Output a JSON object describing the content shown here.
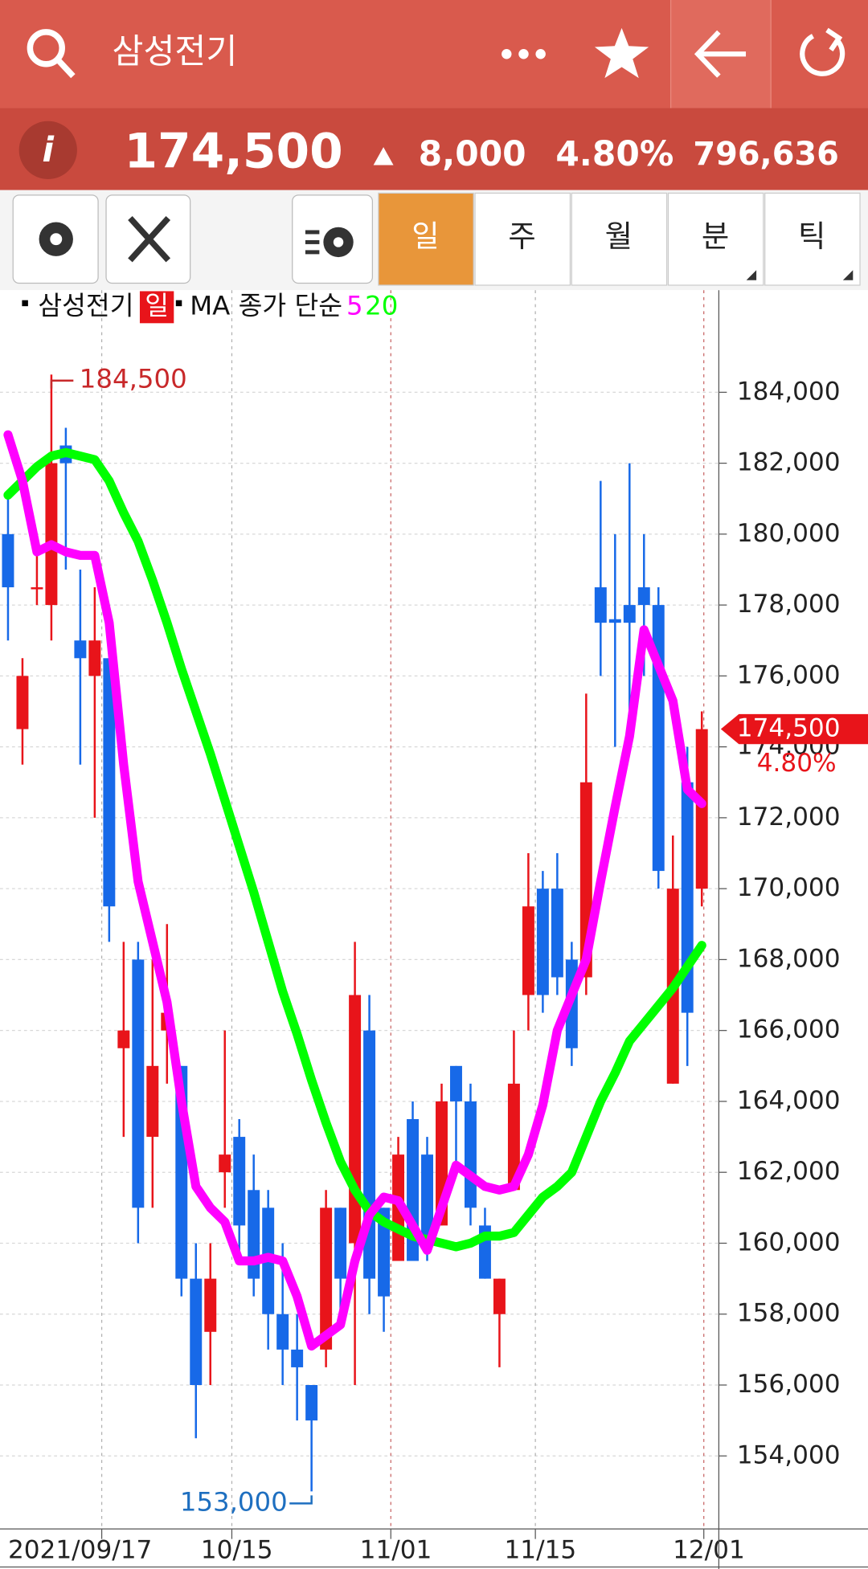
{
  "header": {
    "title": "삼성전기",
    "info_icon": "i",
    "price": "174,500",
    "change": "8,000",
    "change_pct": "4.80%",
    "volume": "796,636"
  },
  "tabs": [
    "일",
    "주",
    "월",
    "분",
    "틱"
  ],
  "legend": {
    "name": "삼성전기",
    "period": "일",
    "ma_label": "MA 종가 단순",
    "ma_short": "5",
    "ma_long": "20"
  },
  "chart_data": {
    "type": "candlestick",
    "categories": [
      null,
      null,
      null,
      null,
      null,
      null,
      "2021/09/17",
      null,
      null,
      null,
      null,
      null,
      null,
      null,
      null,
      "10/15",
      null,
      null,
      null,
      null,
      null,
      null,
      null,
      null,
      null,
      null,
      "11/01",
      null,
      null,
      null,
      null,
      null,
      null,
      null,
      null,
      null,
      "11/15",
      null,
      null,
      null,
      null,
      null,
      null,
      null,
      null,
      null,
      null,
      null,
      "12/01"
    ],
    "open": [
      180000,
      174500,
      178500,
      178000,
      182500,
      177000,
      176000,
      176500,
      165500,
      168000,
      163000,
      166000,
      165000,
      159000,
      157500,
      162000,
      163000,
      161500,
      161000,
      158000,
      157000,
      156000,
      157000,
      161000,
      160000,
      166000,
      161000,
      159500,
      163500,
      162500,
      160500,
      165000,
      164000,
      160500,
      158000,
      161500,
      167000,
      170000,
      170000,
      168000,
      167500,
      178500,
      177600,
      178000,
      178500,
      178000,
      164500,
      173000,
      170000
    ],
    "high": [
      181000,
      176500,
      179500,
      184500,
      183000,
      179000,
      178500,
      176500,
      168500,
      168500,
      168000,
      169000,
      165000,
      160000,
      160000,
      166000,
      163500,
      162500,
      161500,
      160000,
      158000,
      156000,
      161500,
      161000,
      168500,
      167000,
      161000,
      163000,
      164000,
      163000,
      164500,
      165000,
      164500,
      161000,
      159000,
      166000,
      171000,
      170500,
      171000,
      168500,
      175500,
      181500,
      180000,
      182000,
      180000,
      178500,
      171500,
      174000,
      175000
    ],
    "low": [
      177000,
      173500,
      178000,
      177000,
      179000,
      173500,
      172000,
      168500,
      163000,
      160000,
      161000,
      164500,
      158500,
      154500,
      156000,
      161000,
      159500,
      158500,
      157000,
      156000,
      155000,
      153000,
      156500,
      158000,
      156000,
      158000,
      157500,
      159500,
      159500,
      159500,
      160500,
      162000,
      160500,
      159000,
      156500,
      161500,
      166000,
      166500,
      167000,
      165000,
      167000,
      176000,
      174000,
      175000,
      176000,
      170000,
      164500,
      165000,
      169500
    ],
    "close": [
      178500,
      176000,
      178500,
      182000,
      182000,
      176500,
      177000,
      169500,
      166000,
      161000,
      165000,
      166500,
      159000,
      156000,
      159000,
      162500,
      160500,
      159000,
      158000,
      157000,
      156500,
      155000,
      161000,
      159000,
      167000,
      159000,
      158500,
      162500,
      159500,
      160000,
      164000,
      164000,
      161000,
      159000,
      159000,
      164500,
      169500,
      167000,
      167500,
      165500,
      173000,
      177500,
      177500,
      177500,
      178000,
      170500,
      170000,
      166500,
      174500
    ],
    "up_color": "#e8141a",
    "down_color": "#1769e8",
    "series": [
      {
        "name": "5",
        "color": "#ff00ff",
        "values": [
          182800,
          181500,
          179500,
          179700,
          179500,
          179400,
          179400,
          177500,
          173500,
          170200,
          168500,
          166800,
          164000,
          161600,
          161000,
          160600,
          159500,
          159500,
          159600,
          159500,
          158500,
          157100,
          157400,
          157700,
          159500,
          160800,
          161300,
          161200,
          160500,
          159800,
          161000,
          162200,
          161900,
          161600,
          161500,
          161600,
          162500,
          163900,
          166000,
          167000,
          168000,
          170200,
          172300,
          174300,
          177300,
          176300,
          175300,
          172800,
          172400
        ]
      },
      {
        "name": "20",
        "color": "#00ff00",
        "values": [
          181100,
          181500,
          181900,
          182200,
          182300,
          182200,
          182100,
          181500,
          180600,
          179800,
          178700,
          177500,
          176200,
          175000,
          173800,
          172500,
          171200,
          169900,
          168500,
          167100,
          165900,
          164600,
          163400,
          162300,
          161500,
          160900,
          160600,
          160400,
          160200,
          160100,
          160000,
          159900,
          160000,
          160200,
          160200,
          160300,
          160800,
          161300,
          161600,
          162000,
          163000,
          164000,
          164800,
          165700,
          166200,
          166700,
          167200,
          167800,
          168400
        ]
      }
    ],
    "ylim": [
      151940,
      186880
    ],
    "yticks": [
      {
        "value": 154000,
        "label": "154,000"
      },
      {
        "value": 156000,
        "label": "156,000"
      },
      {
        "value": 158000,
        "label": "158,000"
      },
      {
        "value": 160000,
        "label": "160,000"
      },
      {
        "value": 162000,
        "label": "162,000"
      },
      {
        "value": 164000,
        "label": "164,000"
      },
      {
        "value": 166000,
        "label": "166,000"
      },
      {
        "value": 168000,
        "label": "168,000"
      },
      {
        "value": 170000,
        "label": "170,000"
      },
      {
        "value": 172000,
        "label": "172,000"
      },
      {
        "value": 174000,
        "label": "174,000"
      },
      {
        "value": 176000,
        "label": "176,000"
      },
      {
        "value": 178000,
        "label": "178,000"
      },
      {
        "value": 180000,
        "label": "180,000"
      },
      {
        "value": 182000,
        "label": "182,000"
      },
      {
        "value": 184000,
        "label": "184,000"
      }
    ],
    "grid": true,
    "annotations": [
      {
        "label": "184,500",
        "value": 184500,
        "index": 3,
        "color": "#c8282a"
      },
      {
        "label": "153,000",
        "value": 153000,
        "index": 21,
        "color": "#1e6fc0"
      }
    ],
    "last_price": {
      "value": 174500,
      "label": "174,500"
    },
    "last_change": "4.80%"
  }
}
